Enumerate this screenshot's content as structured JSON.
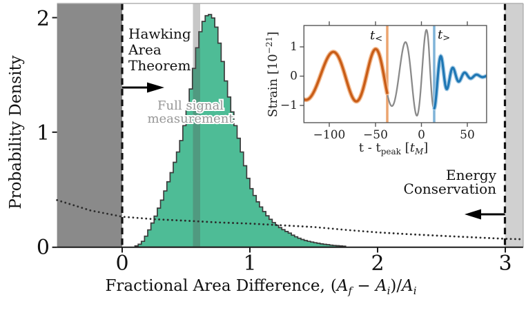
{
  "chart_data": {
    "main": {
      "type": "bar",
      "subtype": "histogram-with-prior-line",
      "xlabel": "Fractional Area Difference,",
      "xlabel_formula": {
        "open": "(",
        "A1": "A",
        "sub_f": "f",
        "minus": " − ",
        "A2": "A",
        "sub_i": "i",
        "close": ")/",
        "A3": "A",
        "sub_i2": "i"
      },
      "ylabel": "Probability Density",
      "xlim": [
        -0.51,
        3.14
      ],
      "ylim": [
        0,
        2.13
      ],
      "x_ticks": [
        "0",
        "1",
        "2",
        "3"
      ],
      "x_tick_values": [
        0,
        1,
        2,
        3
      ],
      "y_ticks": [
        "0",
        "1",
        "2"
      ],
      "y_tick_values": [
        0,
        1,
        2
      ],
      "grid": false,
      "histogram": {
        "name": "posterior-fractional-area-difference",
        "fill_color": "#4ebc96",
        "edge_color": "#3a3a3a",
        "bin_start": 0.1,
        "bin_width": 0.025,
        "heights": [
          0.01,
          0.025,
          0.05,
          0.095,
          0.15,
          0.21,
          0.27,
          0.34,
          0.41,
          0.49,
          0.57,
          0.65,
          0.74,
          0.83,
          0.93,
          1.06,
          1.2,
          1.38,
          1.56,
          1.74,
          1.88,
          1.97,
          2.02,
          2.03,
          2.0,
          1.92,
          1.78,
          1.62,
          1.45,
          1.31,
          1.18,
          1.06,
          0.95,
          0.83,
          0.71,
          0.6,
          0.51,
          0.45,
          0.395,
          0.35,
          0.31,
          0.273,
          0.242,
          0.214,
          0.19,
          0.17,
          0.152,
          0.136,
          0.122,
          0.104,
          0.09,
          0.077,
          0.066,
          0.057,
          0.05,
          0.044,
          0.038,
          0.033,
          0.028,
          0.024,
          0.021,
          0.017,
          0.014,
          0.012,
          0.01,
          0.008
        ]
      },
      "prior_line": {
        "name": "prior-probability-density",
        "style": "dotted",
        "color": "#2b2b2b",
        "points": [
          [
            -0.51,
            0.41
          ],
          [
            -0.25,
            0.32
          ],
          [
            0,
            0.265
          ],
          [
            0.25,
            0.243
          ],
          [
            0.5,
            0.23
          ],
          [
            0.75,
            0.215
          ],
          [
            1.0,
            0.205
          ],
          [
            1.25,
            0.19
          ],
          [
            1.5,
            0.175
          ],
          [
            1.75,
            0.15
          ],
          [
            2.0,
            0.128
          ],
          [
            2.25,
            0.112
          ],
          [
            2.5,
            0.098
          ],
          [
            2.75,
            0.085
          ],
          [
            3.0,
            0.072
          ],
          [
            3.14,
            0.068
          ]
        ]
      },
      "excluded_regions": [
        {
          "name": "hawking-area-theorem-excluded",
          "from": -0.51,
          "to": 0,
          "color": "#8a8a8a"
        },
        {
          "name": "energy-conservation-excluded",
          "from": 3,
          "to": 3.14,
          "color": "#d0d0d0"
        }
      ],
      "boundary_lines": [
        {
          "x": 0,
          "style": "dashed",
          "color": "#111111"
        },
        {
          "x": 3,
          "style": "dashed",
          "color": "#111111"
        }
      ],
      "measurement_band": {
        "from": 0.554,
        "to": 0.611,
        "color": "rgba(85,85,85,0.33)"
      }
    },
    "inset": {
      "type": "line",
      "name": "gravitational-waveform",
      "xlabel_parts": {
        "pre": "t - t",
        "sub": "peak",
        "bracket_open": " [",
        "t_sym": "t",
        "sub_M": "M",
        "bracket_close": "]"
      },
      "ylabel_parts": {
        "pre": "Strain [10",
        "sup": "−21",
        "post": "]"
      },
      "xlim": [
        -128,
        71
      ],
      "ylim": [
        -1.59,
        1.73
      ],
      "x_ticks": [
        "−100",
        "−50",
        "0",
        "50"
      ],
      "x_tick_values": [
        -100,
        -50,
        0,
        50
      ],
      "y_ticks": [
        "1",
        "0",
        "−1"
      ],
      "y_tick_values": [
        1,
        0,
        -1
      ],
      "cut_lines": [
        {
          "label": "t<",
          "t": -37.2,
          "line_color": "#eca46f",
          "text_color": "#c95d17"
        },
        {
          "label": "t>",
          "t": 13.9,
          "line_color": "#7fb3d8",
          "text_color": "#2e7ebc"
        }
      ],
      "waveform_model": {
        "t_start": -128,
        "t_end": 71,
        "dt": 0.35,
        "phase0": 2.93,
        "period_slope": 0.35,
        "period_t_ref": 60,
        "period_min": 13,
        "amp_base": 0.8,
        "amp_growth": 0.85,
        "amp_tau_grow": 30,
        "t_merge": 8,
        "amp_peak": 1.65,
        "amp_tau_ring": 15
      },
      "series_colors": {
        "full": "#8a8a8a",
        "pre_cut": "#c95d17",
        "pre_cut_halo": "#f3bb92",
        "post_cut": "#1f77b4",
        "post_cut_halo": "#a6cce6"
      }
    }
  },
  "annotations": {
    "hawking": {
      "lines": [
        "Hawking",
        "Area",
        "Theorem"
      ],
      "arrow": "right"
    },
    "energy": {
      "lines": [
        "Energy",
        "Conservation"
      ],
      "arrow": "left"
    },
    "full_signal": {
      "lines": [
        "Full signal",
        "measurement"
      ],
      "color": "#969696"
    },
    "t_less": {
      "base": "t",
      "sub": "<"
    },
    "t_greater": {
      "base": "t",
      "sub": ">"
    }
  }
}
